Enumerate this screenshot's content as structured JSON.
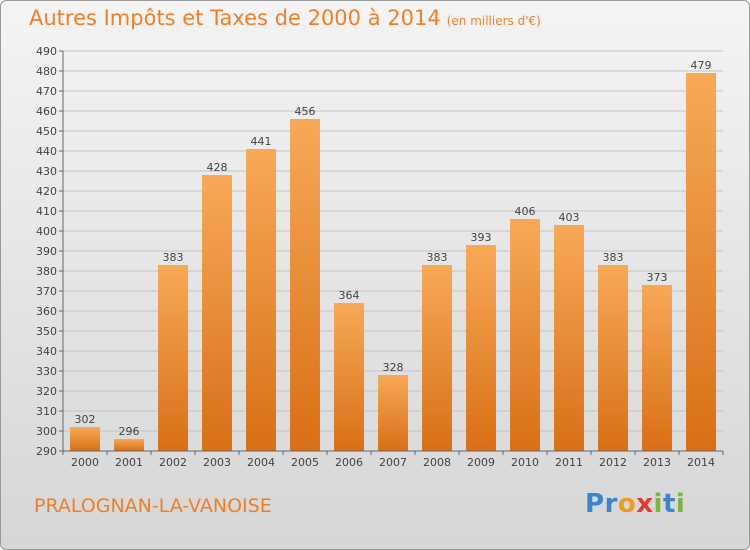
{
  "title": "Autres Impôts et Taxes de 2000 à 2014",
  "subtitle": "(en milliers d'€)",
  "commune": "PRALOGNAN-LA-VANOISE",
  "brand": {
    "letters": [
      "P",
      "r",
      "o",
      "x",
      "i",
      "t",
      "i"
    ],
    "colors": [
      "#3a86c8",
      "#3a86c8",
      "#f29a1c",
      "#e23b2e",
      "#7cb342",
      "#3a86c8",
      "#7cb342"
    ]
  },
  "chart_data": {
    "type": "bar",
    "title": "Autres Impôts et Taxes de 2000 à 2014",
    "subtitle": "(en milliers d'€)",
    "xlabel": "",
    "ylabel": "",
    "categories": [
      "2000",
      "2001",
      "2002",
      "2003",
      "2004",
      "2005",
      "2006",
      "2007",
      "2008",
      "2009",
      "2010",
      "2011",
      "2012",
      "2013",
      "2014"
    ],
    "values": [
      302,
      296,
      383,
      428,
      441,
      456,
      364,
      328,
      383,
      393,
      406,
      403,
      383,
      373,
      479
    ],
    "ylim": [
      290,
      490
    ],
    "ytick_step": 10,
    "grid": true,
    "bar_color": "#ee8a30"
  }
}
